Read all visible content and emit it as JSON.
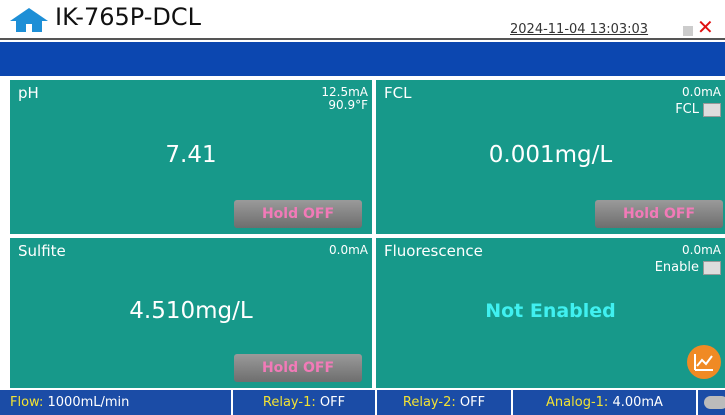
{
  "header": {
    "title": "IK-765P-DCL",
    "datetime": "2024-11-04 13:03:03"
  },
  "panels": [
    {
      "name": "pH",
      "current": "12.5mA",
      "temperature": "90.9°F",
      "reading": "7.41",
      "button": "Hold OFF"
    },
    {
      "name": "FCL",
      "current": "0.0mA",
      "toggle_label": "FCL",
      "reading": "0.001mg/L",
      "button": "Hold OFF"
    },
    {
      "name": "Sulfite",
      "current": "0.0mA",
      "reading": "4.510mg/L",
      "button": "Hold OFF"
    },
    {
      "name": "Fluorescence",
      "current": "0.0mA",
      "toggle_label": "Enable",
      "status": "Not Enabled"
    }
  ],
  "status_bar": [
    {
      "label": "Flow:",
      "value": "1000mL/min"
    },
    {
      "label": "Relay-1:",
      "value": "OFF"
    },
    {
      "label": "Relay-2:",
      "value": "OFF"
    },
    {
      "label": "Analog-1:",
      "value": "4.00mA"
    }
  ]
}
